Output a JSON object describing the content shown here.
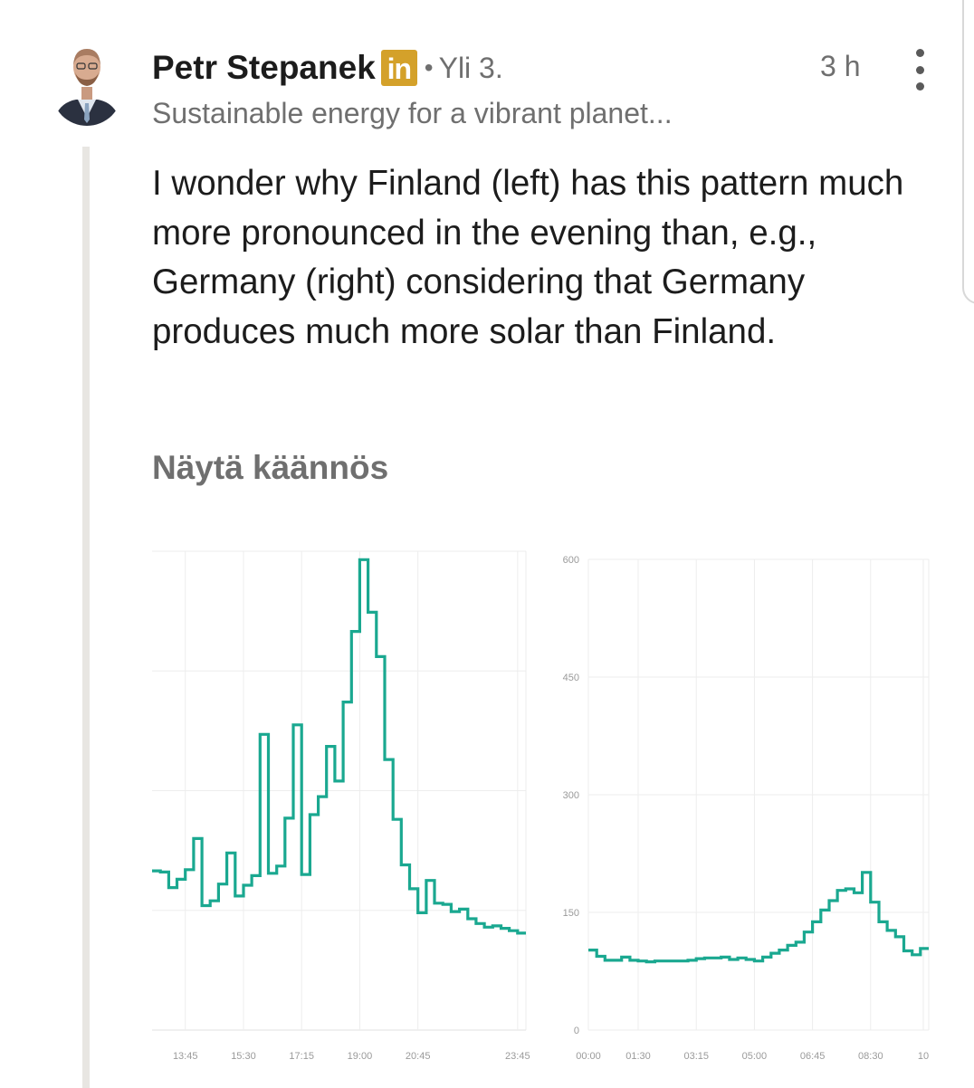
{
  "post": {
    "author": "Petr Stepanek",
    "badge": "in",
    "separator": "•",
    "connection": "Yli 3.",
    "time": "3 h",
    "headline": "Sustainable energy for a vibrant planet...",
    "text": "I wonder why Finland (left) has this pattern much more pronounced in the evening than, e.g., Germany (right) considering that Germany produces much more solar than Finland.",
    "translate_label": "Näytä käännös"
  },
  "icons": {
    "avatar": "profile-photo",
    "badge": "linkedin-icon",
    "more": "more-vertical-icon"
  },
  "colors": {
    "line": "#1aa890",
    "name": "#1c1c1c",
    "muted": "#6f6f6f",
    "badge": "#d4a12a"
  },
  "chart_data": [
    {
      "type": "line",
      "step": true,
      "x_ticks": [
        "13:45",
        "15:30",
        "17:15",
        "19:00",
        "20:45",
        "23:45"
      ],
      "grid": true,
      "x": [
        "12:45",
        "13:00",
        "13:15",
        "13:30",
        "13:45",
        "14:00",
        "14:15",
        "14:30",
        "14:45",
        "15:00",
        "15:15",
        "15:30",
        "15:45",
        "16:00",
        "16:15",
        "16:30",
        "16:45",
        "17:00",
        "17:15",
        "17:30",
        "17:45",
        "18:00",
        "18:15",
        "18:30",
        "18:45",
        "19:00",
        "19:15",
        "19:30",
        "19:45",
        "20:00",
        "20:15",
        "20:30",
        "20:45",
        "21:00",
        "21:15",
        "21:30",
        "21:45",
        "22:00",
        "22:15",
        "22:30",
        "22:45",
        "23:00",
        "23:15",
        "23:30",
        "23:45"
      ],
      "values": [
        133,
        132,
        119,
        126,
        134,
        160,
        104,
        108,
        122,
        148,
        112,
        121,
        129,
        247,
        131,
        137,
        177,
        255,
        130,
        180,
        195,
        237,
        208,
        274,
        333,
        393,
        349,
        312,
        226,
        176,
        138,
        118,
        98,
        125,
        106,
        105,
        99,
        101,
        93,
        89,
        86,
        87,
        85,
        83,
        81
      ],
      "ylim": [
        0,
        400
      ]
    },
    {
      "type": "line",
      "step": true,
      "y_ticks": [
        "0",
        "150",
        "300",
        "450",
        "600"
      ],
      "x_ticks": [
        "00:00",
        "01:30",
        "03:15",
        "05:00",
        "06:45",
        "08:30",
        "10"
      ],
      "ylim": [
        0,
        600
      ],
      "grid": true,
      "x": [
        "00:00",
        "00:15",
        "00:30",
        "00:45",
        "01:00",
        "01:15",
        "01:30",
        "01:45",
        "02:00",
        "02:15",
        "02:30",
        "02:45",
        "03:00",
        "03:15",
        "03:30",
        "03:45",
        "04:00",
        "04:15",
        "04:30",
        "04:45",
        "05:00",
        "05:15",
        "05:30",
        "05:45",
        "06:00",
        "06:15",
        "06:30",
        "06:45",
        "07:00",
        "07:15",
        "07:30",
        "07:45",
        "08:00",
        "08:15",
        "08:30",
        "08:45",
        "09:00",
        "09:15",
        "09:30",
        "09:45",
        "10:00"
      ],
      "values": [
        102,
        94,
        89,
        89,
        93,
        89,
        88,
        87,
        88,
        88,
        88,
        88,
        89,
        91,
        92,
        92,
        93,
        90,
        92,
        90,
        88,
        93,
        98,
        102,
        108,
        112,
        125,
        138,
        153,
        165,
        178,
        180,
        175,
        201,
        163,
        138,
        127,
        119,
        101,
        96,
        104
      ]
    }
  ]
}
